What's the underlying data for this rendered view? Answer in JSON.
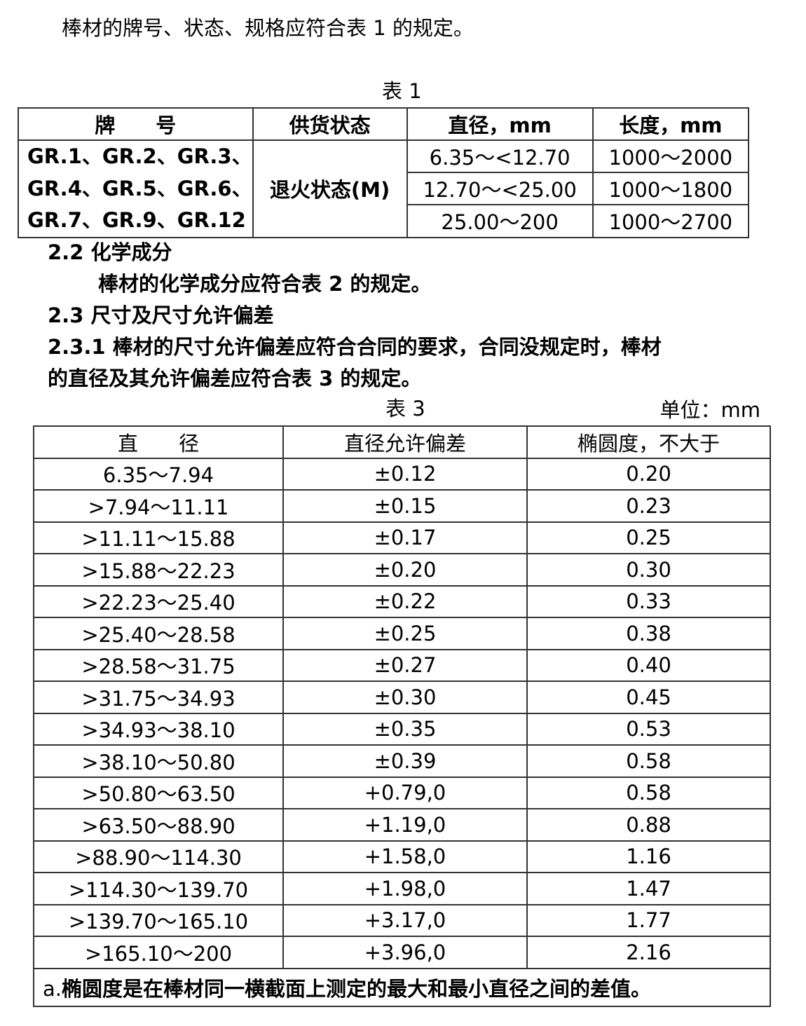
{
  "intro": "棒材的牌号、状态、规格应符合表 1 的规定。",
  "table1": {
    "caption": "表 1",
    "headers": [
      "牌　　号",
      "供货状态",
      "直径，mm",
      "长度，mm"
    ],
    "grades": [
      "GR.1、GR.2、GR.3、",
      "GR.4、GR.5、GR.6、",
      "GR.7、GR.9、GR.12"
    ],
    "state": "退火状态(M)",
    "rows": [
      [
        "6.35～<12.70",
        "1000～2000"
      ],
      [
        "12.70～<25.00",
        "1000～1800"
      ],
      [
        "25.00～200",
        "1000～2700"
      ]
    ]
  },
  "s22_title": "2.2 化学成分",
  "s22_text": "棒材的化学成分应符合表 2 的规定。",
  "s23_title": "2.3 尺寸及尺寸允许偏差",
  "s231_line1": "2.3.1 棒材的尺寸允许偏差应符合合同的要求，合同没规定时，棒材",
  "s231_line2": "的直径及其允许偏差应符合表 3 的规定。",
  "table3": {
    "caption": "表 3",
    "unit": "单位：mm",
    "headers": [
      "直　　径",
      "直径允许偏差",
      "椭圆度，不大于"
    ],
    "rows": [
      [
        "6.35～7.94",
        "±0.12",
        "0.20"
      ],
      [
        ">7.94～11.11",
        "±0.15",
        "0.23"
      ],
      [
        ">11.11～15.88",
        "±0.17",
        "0.25"
      ],
      [
        ">15.88～22.23",
        "±0.20",
        "0.30"
      ],
      [
        ">22.23～25.40",
        "±0.22",
        "0.33"
      ],
      [
        ">25.40～28.58",
        "±0.25",
        "0.38"
      ],
      [
        ">28.58～31.75",
        "±0.27",
        "0.40"
      ],
      [
        ">31.75～34.93",
        "±0.30",
        "0.45"
      ],
      [
        ">34.93～38.10",
        "±0.35",
        "0.53"
      ],
      [
        ">38.10～50.80",
        "±0.39",
        "0.58"
      ],
      [
        ">50.80～63.50",
        "+0.79,0",
        "0.58"
      ],
      [
        ">63.50～88.90",
        "+1.19,0",
        "0.88"
      ],
      [
        ">88.90～114.30",
        "+1.58,0",
        "1.16"
      ],
      [
        ">114.30～139.70",
        "+1.98,0",
        "1.47"
      ],
      [
        ">139.70～165.10",
        "+3.17,0",
        "1.77"
      ],
      [
        ">165.10～200",
        "+3.96,0",
        "2.16"
      ]
    ],
    "footnote_marker": "a.",
    "footnote": "椭圆度是在棒材同一横截面上测定的最大和最小直径之间的差值。"
  }
}
